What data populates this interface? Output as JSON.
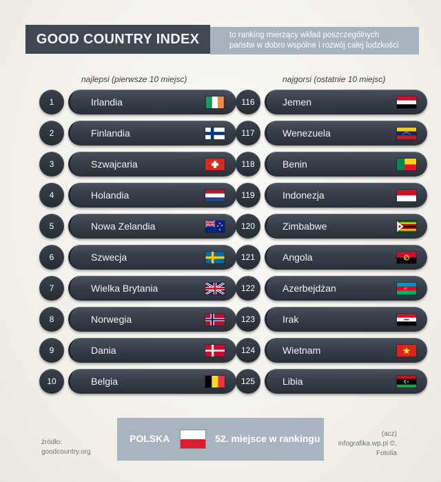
{
  "title": "GOOD COUNTRY INDEX",
  "subtitle_line1": "to ranking mierzący wkład poszczególnych",
  "subtitle_line2": "państw w dobro wspólne i rozwój całej ludzkości",
  "best_header": "najlepsi (pierwsze 10 miejsc)",
  "worst_header": "najgorsi (ostatnie 10 miejsc)",
  "best": [
    {
      "rank": "1",
      "name": "Irlandia",
      "flag": "ireland-flag"
    },
    {
      "rank": "2",
      "name": "Finlandia",
      "flag": "finland-flag"
    },
    {
      "rank": "3",
      "name": "Szwajcaria",
      "flag": "switzerland-flag"
    },
    {
      "rank": "4",
      "name": "Holandia",
      "flag": "netherlands-flag"
    },
    {
      "rank": "5",
      "name": "Nowa Zelandia",
      "flag": "new-zealand-flag"
    },
    {
      "rank": "6",
      "name": "Szwecja",
      "flag": "sweden-flag"
    },
    {
      "rank": "7",
      "name": "Wielka Brytania",
      "flag": "uk-flag"
    },
    {
      "rank": "8",
      "name": "Norwegia",
      "flag": "norway-flag"
    },
    {
      "rank": "9",
      "name": "Dania",
      "flag": "denmark-flag"
    },
    {
      "rank": "10",
      "name": "Belgia",
      "flag": "belgium-flag"
    }
  ],
  "worst": [
    {
      "rank": "116",
      "name": "Jemen",
      "flag": "yemen-flag"
    },
    {
      "rank": "117",
      "name": "Wenezuela",
      "flag": "venezuela-flag"
    },
    {
      "rank": "118",
      "name": "Benin",
      "flag": "benin-flag"
    },
    {
      "rank": "119",
      "name": "Indonezja",
      "flag": "indonesia-flag"
    },
    {
      "rank": "120",
      "name": "Zimbabwe",
      "flag": "zimbabwe-flag"
    },
    {
      "rank": "121",
      "name": "Angola",
      "flag": "angola-flag"
    },
    {
      "rank": "122",
      "name": "Azerbejdżan",
      "flag": "azerbaijan-flag"
    },
    {
      "rank": "123",
      "name": "Irak",
      "flag": "iraq-flag"
    },
    {
      "rank": "124",
      "name": "Wietnam",
      "flag": "vietnam-flag"
    },
    {
      "rank": "125",
      "name": "Libia",
      "flag": "libya-flag"
    }
  ],
  "poland": {
    "label": "POLSKA",
    "rank_text": "52. miejsce w rankingu"
  },
  "source_line1": "źródło:",
  "source_line2": "goodcountry.org",
  "credit_line1": "(acz)",
  "credit_line2": "infografika.wp.pl ©,",
  "credit_line3": "Fotolia",
  "colors": {
    "title_bg": "#3f4753",
    "subtitle_bg": "#a7b3bf",
    "pill": "#353d47",
    "poland_red": "#dc1c2c"
  }
}
